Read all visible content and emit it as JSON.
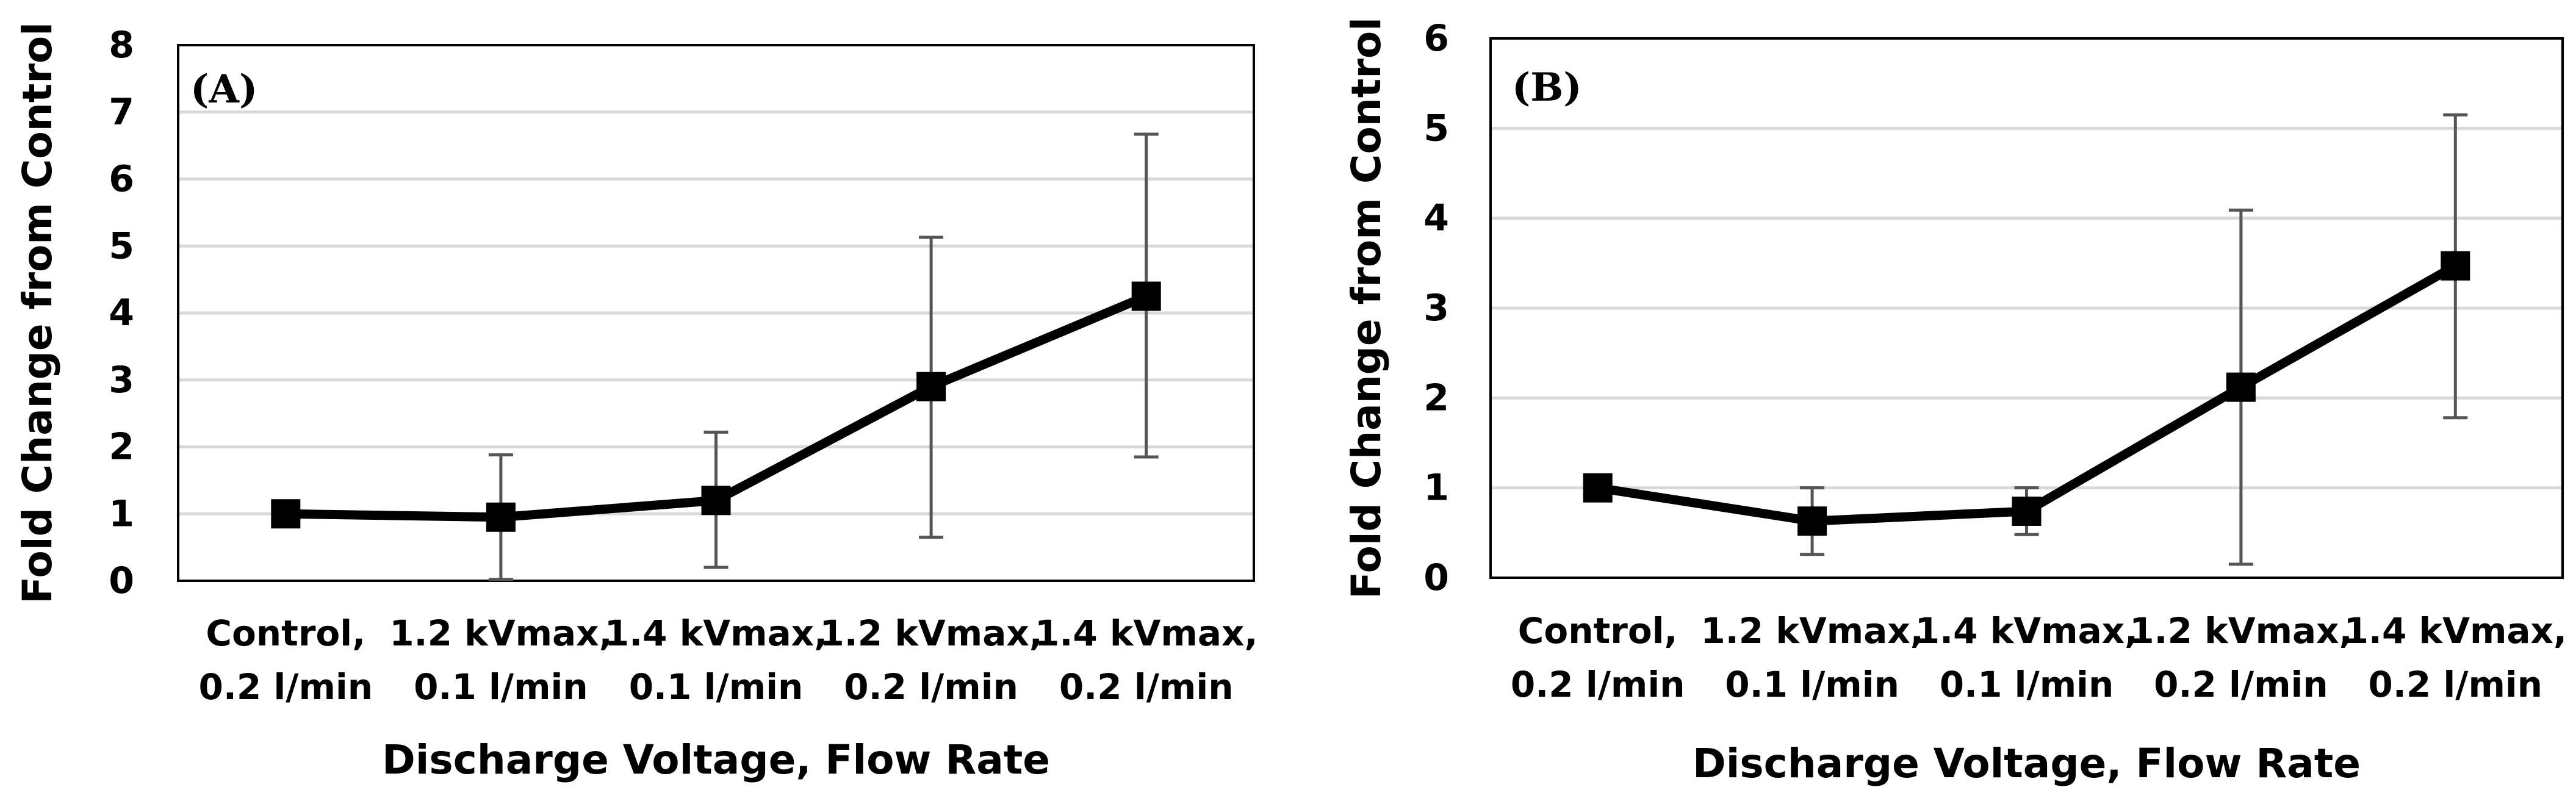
{
  "chart_data": [
    {
      "type": "line",
      "panel_label": "(A)",
      "xlabel": "Discharge Voltage, Flow Rate",
      "ylabel": "Fold Change from Control",
      "categories": [
        [
          "Control,",
          "0.2 l/min"
        ],
        [
          "1.2 kVmax,",
          "0.1 l/min"
        ],
        [
          "1.4 kVmax,",
          "0.1 l/min"
        ],
        [
          "1.2 kVmax,",
          "0.2 l/min"
        ],
        [
          "1.4 kVmax,",
          "0.2 l/min"
        ]
      ],
      "ylim": [
        0,
        8
      ],
      "yticks": [
        0,
        1,
        2,
        3,
        4,
        5,
        6,
        7,
        8
      ],
      "grid": true,
      "series": [
        {
          "values": [
            1.0,
            0.95,
            1.2,
            2.9,
            4.25
          ],
          "error_upper": [
            1.0,
            1.88,
            2.22,
            5.13,
            6.67
          ],
          "error_lower": [
            1.0,
            0.02,
            0.2,
            0.65,
            1.85
          ],
          "color": "#000000",
          "marker": "square"
        }
      ]
    },
    {
      "type": "line",
      "panel_label": "(B)",
      "xlabel": "Discharge Voltage, Flow Rate",
      "ylabel": "Fold Change from Control",
      "categories": [
        [
          "Control,",
          "0.2 l/min"
        ],
        [
          "1.2 kVmax,",
          "0.1 l/min"
        ],
        [
          "1.4 kVmax,",
          "0.1 l/min"
        ],
        [
          "1.2 kVmax,",
          "0.2 l/min"
        ],
        [
          "1.4 kVmax,",
          "0.2 l/min"
        ]
      ],
      "ylim": [
        0,
        6
      ],
      "yticks": [
        0,
        1,
        2,
        3,
        4,
        5,
        6
      ],
      "grid": true,
      "series": [
        {
          "values": [
            1.0,
            0.63,
            0.74,
            2.12,
            3.47
          ],
          "error_upper": [
            1.0,
            1.0,
            1.0,
            4.09,
            5.15
          ],
          "error_lower": [
            1.0,
            0.26,
            0.48,
            0.15,
            1.78
          ],
          "color": "#000000",
          "marker": "square"
        }
      ]
    }
  ]
}
